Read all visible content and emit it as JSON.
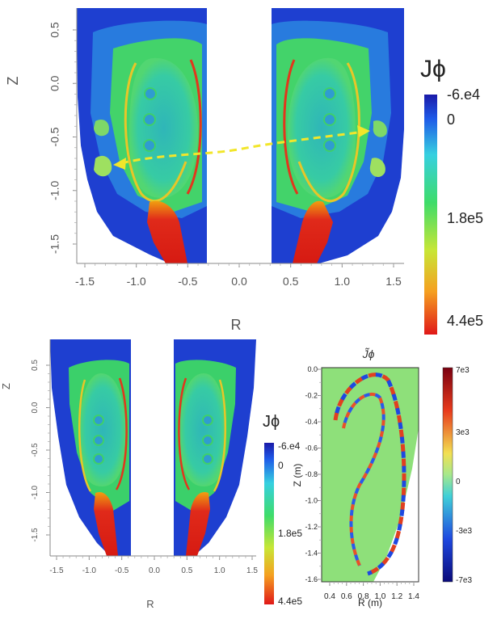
{
  "top_panel": {
    "x_axis_label": "R",
    "y_axis_label": "Z",
    "x_ticks": [
      "-1.5",
      "-1.0",
      "-0.5",
      "0.0",
      "0.5",
      "1.0",
      "1.5"
    ],
    "y_ticks": [
      "0.5",
      "0.0",
      "-0.5",
      "-1.0",
      "-1.5"
    ],
    "colorbar_title": "Jϕ",
    "colorbar_labels": [
      "-6.e4",
      "0",
      "1.8e5",
      "4.4e5"
    ]
  },
  "bottom_left_panel": {
    "x_axis_label": "R",
    "y_axis_label": "Z",
    "x_ticks": [
      "-1.5",
      "-1.0",
      "-0.5",
      "0.0",
      "0.5",
      "1.0",
      "1.5"
    ],
    "y_ticks": [
      "0.5",
      "0.0",
      "-0.5",
      "-1.0",
      "-1.5"
    ],
    "colorbar_title": "Jϕ",
    "colorbar_labels": [
      "-6.e4",
      "0",
      "1.8e5",
      "4.4e5"
    ]
  },
  "bottom_right_panel": {
    "title": "J̃ϕ",
    "x_axis_label": "R (m)",
    "y_axis_label": "Z (m)",
    "x_ticks": [
      "0.4",
      "0.6",
      "0.8",
      "1.0",
      "1.2",
      "1.4"
    ],
    "y_ticks": [
      "0.0",
      "-0.2",
      "-0.4",
      "-0.6",
      "-0.8",
      "-1.0",
      "-1.2",
      "-1.4",
      "-1.6"
    ],
    "colorbar_labels": [
      "7e3",
      "3e3",
      "0",
      "-3e3",
      "-7e3"
    ]
  },
  "colors": {
    "field_blue": "#1e3fd0",
    "plasma_green": "#3cd84a",
    "core_cyan": "#35c9a8",
    "current_red": "#e02a1a",
    "arrow_yellow": "#f2e62a",
    "perturbation_bg": "#8ee07a"
  }
}
